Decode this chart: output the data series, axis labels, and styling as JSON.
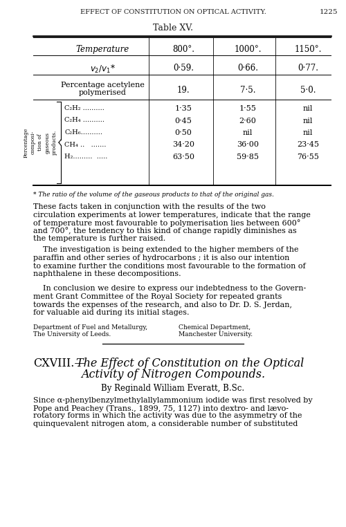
{
  "bg_color": "#ffffff",
  "text_color": "#1a1a1a",
  "page_width": 5.0,
  "page_height": 7.62,
  "header_text": "EFFECT OF CONSTITUTION ON OPTICAL ACTIVITY.",
  "page_number": "1225",
  "table_title": "Table XV.",
  "col_headers": [
    "Temperature",
    "800°.",
    "1000°.",
    "1150°."
  ],
  "row1_label": "v₂/v₁*",
  "row1_vals": [
    "0·59.",
    "0·66.",
    "0·77."
  ],
  "row2_label1": "Percentage acetylene",
  "row2_label2": "polymerised",
  "row2_vals": [
    "19.",
    "7·5.",
    "5·0."
  ],
  "rotated_label_lines": [
    "Percentage",
    "composi-",
    "tion of",
    "gaseous",
    "products."
  ],
  "chemicals": [
    "C₂H₂ ..........",
    "C₂H₄ ..........",
    "C₂H₆..........",
    "CH₄ ..   .......",
    "H₂.........  ....."
  ],
  "col_800": [
    "1·35",
    "0·45",
    "0·50",
    "34·20",
    "63·50"
  ],
  "col_1000": [
    "1·55",
    "2·60",
    "nil",
    "36·00",
    "59·85"
  ],
  "col_1150": [
    "nil",
    "nil",
    "nil",
    "23·45",
    "76·55"
  ],
  "footnote": "* The ratio of the volume of the gaseous products to that of the original gas.",
  "p1_lines": [
    "These facts taken in conjunction with the results of the two",
    "circulation experiments at lower temperatures, indicate that the range",
    "of temperature most favourable to polymerisation lies between 600°",
    "and 700°, the tendency to this kind of change rapidly diminishes as",
    "the temperature is further raised."
  ],
  "p2_lines": [
    "    The investigation is being extended to the higher members of the",
    "paraffin and other series of hydrocarbons ; it is also our intention",
    "to examine further the conditions most favourable to the formation of",
    "naphthalene in these decompositions."
  ],
  "p3_lines": [
    "    In conclusion we desire to express our indebtedness to the Govern-",
    "ment Grant Committee of the Royal Society for repeated grants",
    "towards the expenses of the research, and also to Dr. D. S. Jerdan,",
    "for valuable aid during its initial stages."
  ],
  "dept_left1": "Department of Fuel and Metallurgy,",
  "dept_left2": "The University of Leeds.",
  "dept_right1": "Chemical Department,",
  "dept_right2": "Manchester University.",
  "section_roman": "CXVIII.—",
  "section_italic": "The Effect of Constitution on the Optical",
  "section_italic2": "Activity of Nitrogen Compounds.",
  "author_line": "By Reginald William Everatt, B.Sc.",
  "body_lines": [
    "Since α-phenylbenzylmethylallylammonium iodide was first resolved by",
    "Pope and Peachey (Trans., 1899, 75, 1127) into dextro- and lævo-",
    "rotatory forms in which the activity was due to the asymmetry of the",
    "quinquevalent nitrogen atom, a considerable number of substituted"
  ]
}
